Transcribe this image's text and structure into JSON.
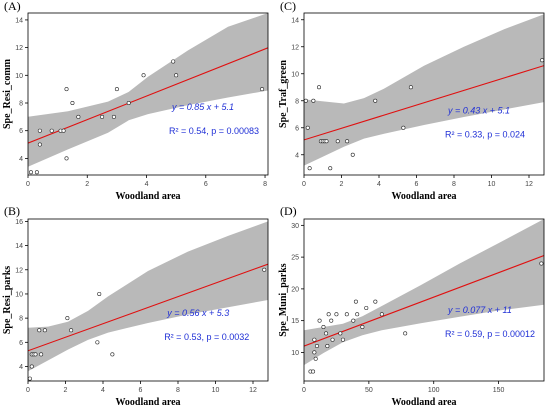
{
  "chart_data": [
    {
      "type": "scatter",
      "panel": "(A)",
      "xlabel": "Woodland area",
      "ylabel": "Spe_Resi_comm",
      "xlim": [
        0,
        8.1
      ],
      "ylim": [
        2.8,
        14.5
      ],
      "xticks": [
        0,
        2,
        4,
        6,
        8
      ],
      "yticks": [
        4,
        6,
        8,
        10,
        12,
        14
      ],
      "points": {
        "x": [
          0.1,
          0.3,
          0.4,
          0.4,
          0.8,
          1.1,
          1.2,
          1.3,
          1.3,
          1.5,
          1.7,
          2.5,
          2.9,
          3.0,
          3.4,
          3.9,
          4.9,
          5.0,
          7.9
        ],
        "y": [
          3,
          3,
          6,
          5,
          6,
          6,
          6,
          9,
          4,
          8,
          7,
          7,
          7,
          9,
          8,
          10,
          11,
          10,
          9
        ]
      },
      "fit": {
        "slope": 0.85,
        "intercept": 5.1
      },
      "band": {
        "x": [
          0,
          1.35,
          2.7,
          3.4,
          4.05,
          5.4,
          6.75,
          8.1
        ],
        "lower": [
          3.4,
          4.65,
          5.85,
          6.75,
          7.2,
          7.85,
          8.4,
          8.9
        ],
        "upper": [
          7.0,
          7.4,
          8.1,
          8.8,
          9.9,
          11.8,
          13.5,
          14.5
        ]
      },
      "equation": "y = 0.85 x + 5.1",
      "stats": "R² = 0.54,  p = 0.00083"
    },
    {
      "type": "scatter",
      "panel": "(C)",
      "xlabel": "Woodland area",
      "ylabel": "Spe_Traf_green",
      "xlim": [
        0,
        12.8
      ],
      "ylim": [
        2.5,
        14.5
      ],
      "xticks": [
        0,
        2,
        4,
        6,
        8,
        10,
        12
      ],
      "yticks": [
        4,
        6,
        8,
        10,
        12,
        14
      ],
      "points": {
        "x": [
          0.1,
          0.2,
          0.3,
          0.5,
          0.8,
          0.9,
          1.0,
          1.1,
          1.2,
          1.4,
          1.8,
          2.3,
          2.6,
          3.8,
          5.3,
          5.7,
          12.7
        ],
        "y": [
          8,
          6,
          3,
          8,
          9,
          5,
          5,
          5,
          5,
          3,
          5,
          5,
          4,
          8,
          6,
          9,
          11
        ]
      },
      "fit": {
        "slope": 0.43,
        "intercept": 5.1
      },
      "band": {
        "x": [
          0,
          2.13,
          3.2,
          4.27,
          6.4,
          8.53,
          10.67,
          12.8
        ],
        "lower": [
          3.2,
          4.6,
          5.2,
          5.55,
          6.2,
          6.8,
          7.35,
          7.9
        ],
        "upper": [
          8.1,
          7.8,
          8.2,
          8.9,
          10.6,
          12.0,
          13.3,
          14.4
        ]
      },
      "equation": "y = 0.43 x + 5.1",
      "stats": "R² = 0.33,  p = 0.024"
    },
    {
      "type": "scatter",
      "panel": "(B)",
      "xlabel": "Woodland area",
      "ylabel": "Spe_Resi_parks",
      "xlim": [
        0,
        12.8
      ],
      "ylim": [
        2.8,
        16.2
      ],
      "xticks": [
        0,
        2,
        4,
        6,
        8,
        10,
        12
      ],
      "yticks": [
        4,
        6,
        8,
        10,
        12,
        14,
        16
      ],
      "points": {
        "x": [
          0.1,
          0.2,
          0.2,
          0.3,
          0.4,
          0.6,
          0.7,
          0.9,
          2.1,
          2.3,
          3.7,
          3.8,
          4.5,
          12.6
        ],
        "y": [
          3,
          5,
          4,
          5,
          5,
          7,
          5,
          7,
          8,
          7,
          6,
          10,
          5,
          12
        ]
      },
      "fit": {
        "slope": 0.56,
        "intercept": 5.3
      },
      "band": {
        "x": [
          0,
          1.07,
          2.13,
          3.2,
          4.27,
          6.4,
          8.53,
          10.67,
          12.8
        ],
        "lower": [
          3.6,
          4.5,
          5.4,
          6.2,
          6.8,
          7.6,
          8.3,
          8.9,
          9.5
        ],
        "upper": [
          7.2,
          7.3,
          7.7,
          8.6,
          9.8,
          11.9,
          13.5,
          14.8,
          16.0
        ]
      },
      "equation": "y = 0.56 x + 5.3",
      "stats": "R² = 0.53,  p = 0.0032"
    },
    {
      "type": "scatter",
      "panel": "(D)",
      "xlabel": "Woodland area",
      "ylabel": "Spe_Muni_parks",
      "xlim": [
        0,
        185
      ],
      "ylim": [
        5.5,
        31
      ],
      "xticks": [
        0,
        50,
        100,
        150
      ],
      "yticks": [
        10,
        15,
        20,
        25,
        30
      ],
      "points": {
        "x": [
          5,
          7,
          8,
          8,
          9,
          10,
          12,
          15,
          17,
          18,
          19,
          21,
          22,
          25,
          28,
          30,
          33,
          38,
          40,
          41,
          45,
          48,
          55,
          60,
          78,
          183
        ],
        "y": [
          7,
          7,
          12,
          10,
          9,
          11,
          15,
          14,
          13,
          11,
          16,
          15,
          12,
          16,
          13,
          12,
          16,
          15,
          18,
          16,
          14,
          17,
          18,
          16,
          13,
          24
        ]
      },
      "fit": {
        "slope": 0.077,
        "intercept": 11
      },
      "band": {
        "x": [
          0,
          15,
          30,
          45,
          60,
          90,
          120,
          150,
          185
        ],
        "lower": [
          8.0,
          9.9,
          11.6,
          12.7,
          13.5,
          14.6,
          15.6,
          16.6,
          17.5
        ],
        "upper": [
          13.5,
          14.0,
          14.5,
          15.7,
          17.3,
          20.6,
          24.0,
          27.2,
          31.0
        ]
      },
      "equation": "y = 0.077 x + 11",
      "stats": "R² = 0.59,  p = 0.00012"
    }
  ]
}
